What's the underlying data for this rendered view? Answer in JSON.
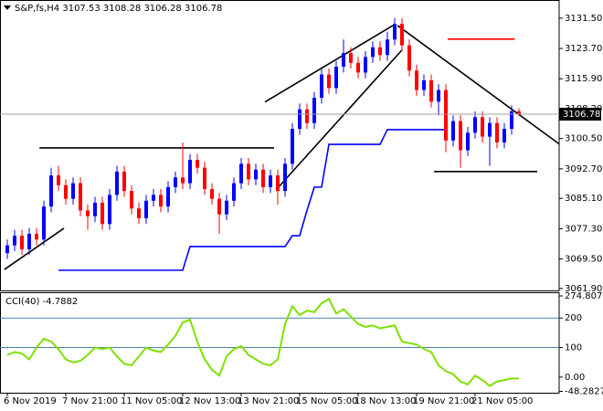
{
  "chart_data": [
    {
      "type": "candlestick",
      "title": "S&P,fs,H4",
      "categories": [
        "6 Nov 2019",
        null,
        null,
        null,
        null,
        null,
        null,
        null,
        "7 Nov 21:00",
        null,
        null,
        null,
        null,
        null,
        null,
        null,
        "11 Nov 05:00",
        null,
        null,
        null,
        null,
        null,
        null,
        null,
        "12 Nov 13:00",
        null,
        null,
        null,
        null,
        null,
        null,
        null,
        "13 Nov 21:00",
        null,
        null,
        null,
        null,
        null,
        null,
        null,
        "15 Nov 05:00",
        null,
        null,
        null,
        null,
        null,
        null,
        null,
        "18 Nov 13:00",
        null,
        null,
        null,
        null,
        null,
        null,
        null,
        "19 Nov 21:00",
        null,
        null,
        null,
        null,
        null,
        null,
        null,
        "21 Nov 05:00",
        null,
        null,
        null,
        null,
        null,
        null
      ],
      "open": [
        3071.0,
        3073.0,
        3075.5,
        3072.0,
        3076.0,
        3074.5,
        3083.0,
        3091.0,
        3088.5,
        3085.0,
        3089.0,
        3082.0,
        3080.5,
        3084.0,
        3078.5,
        3086.0,
        3092.0,
        3087.0,
        3082.5,
        3080.0,
        3084.5,
        3086.0,
        3083.0,
        3088.0,
        3090.5,
        3089.0,
        3095.0,
        3093.0,
        3087.5,
        3085.0,
        3081.0,
        3084.5,
        3089.0,
        3094.0,
        3090.0,
        3092.5,
        3088.0,
        3091.0,
        3087.0,
        3094.0,
        3103.0,
        3108.0,
        3104.5,
        3111.0,
        3117.0,
        3113.5,
        3119.0,
        3122.5,
        3120.0,
        3117.5,
        3121.5,
        3124.0,
        3122.0,
        3126.0,
        3130.0,
        3124.5,
        3118.0,
        3113.0,
        3115.5,
        3110.0,
        3113.0,
        3100.0,
        3105.0,
        3097.5,
        3102.0,
        3106.0,
        3101.0,
        3104.5,
        3099.5,
        3103.0,
        3107.53
      ],
      "high": [
        3074.5,
        3077.0,
        3077.0,
        3077.5,
        3077.5,
        3084.5,
        3093.0,
        3093.5,
        3090.0,
        3090.5,
        3090.5,
        3083.5,
        3085.5,
        3085.5,
        3087.5,
        3093.5,
        3093.5,
        3088.5,
        3084.0,
        3086.0,
        3087.5,
        3087.5,
        3089.5,
        3092.0,
        3099.5,
        3096.5,
        3096.5,
        3094.5,
        3089.0,
        3086.5,
        3086.0,
        3090.5,
        3095.5,
        3095.5,
        3094.0,
        3094.0,
        3092.5,
        3092.5,
        3095.5,
        3104.5,
        3109.5,
        3109.5,
        3112.5,
        3118.5,
        3118.5,
        3120.5,
        3126.0,
        3124.0,
        3121.5,
        3123.0,
        3125.5,
        3125.5,
        3128.0,
        3131.5,
        3131.5,
        3126.0,
        3119.5,
        3117.0,
        3117.0,
        3114.5,
        3114.5,
        3106.5,
        3106.5,
        3103.5,
        3107.5,
        3107.5,
        3106.0,
        3106.0,
        3104.5,
        3109.0,
        3108.28
      ],
      "low": [
        3069.5,
        3071.5,
        3070.5,
        3070.5,
        3073.0,
        3073.0,
        3081.5,
        3087.0,
        3083.5,
        3083.5,
        3080.5,
        3077.0,
        3079.0,
        3077.0,
        3077.0,
        3084.5,
        3085.5,
        3081.0,
        3078.5,
        3078.5,
        3083.0,
        3081.5,
        3081.5,
        3086.5,
        3087.5,
        3087.5,
        3091.5,
        3086.0,
        3083.5,
        3076.0,
        3079.5,
        3083.0,
        3087.5,
        3088.5,
        3088.5,
        3086.5,
        3086.5,
        3083.5,
        3085.5,
        3092.5,
        3101.5,
        3103.0,
        3103.0,
        3109.5,
        3112.0,
        3112.0,
        3117.5,
        3118.5,
        3116.0,
        3116.0,
        3120.0,
        3120.5,
        3120.5,
        3124.5,
        3123.0,
        3116.5,
        3111.5,
        3111.5,
        3108.5,
        3106.5,
        3097.0,
        3098.5,
        3093.0,
        3096.0,
        3100.5,
        3099.5,
        3093.5,
        3098.0,
        3098.0,
        3101.5,
        3106.28
      ],
      "close": [
        3073.0,
        3075.5,
        3072.0,
        3076.0,
        3074.5,
        3083.0,
        3091.0,
        3088.5,
        3085.0,
        3089.0,
        3082.0,
        3080.5,
        3084.0,
        3078.5,
        3086.0,
        3092.0,
        3087.0,
        3082.5,
        3080.0,
        3084.5,
        3086.0,
        3083.0,
        3088.0,
        3090.5,
        3089.0,
        3095.0,
        3093.0,
        3087.5,
        3085.0,
        3081.0,
        3084.5,
        3089.0,
        3094.0,
        3090.0,
        3092.5,
        3088.0,
        3091.0,
        3087.0,
        3094.0,
        3103.0,
        3108.0,
        3104.5,
        3111.0,
        3117.0,
        3113.5,
        3119.0,
        3122.5,
        3120.0,
        3117.5,
        3121.5,
        3124.0,
        3122.0,
        3126.0,
        3130.0,
        3124.5,
        3118.0,
        3113.0,
        3115.5,
        3110.0,
        3113.0,
        3100.0,
        3105.0,
        3097.5,
        3102.0,
        3106.0,
        3101.0,
        3104.5,
        3099.5,
        3103.0,
        3107.53,
        3106.78
      ],
      "up_color": "#0000ff",
      "down_color": "#ff0000",
      "lines": [
        {
          "color": "#0000ff",
          "values": [
            null,
            null,
            null,
            null,
            null,
            null,
            null,
            3066.6,
            3066.6,
            3066.6,
            3066.6,
            3066.6,
            3066.6,
            3066.6,
            3066.6,
            3066.6,
            3066.6,
            3066.6,
            3066.6,
            3066.6,
            3066.6,
            3066.6,
            3066.6,
            3066.6,
            3066.6,
            3072.7,
            3072.7,
            3072.7,
            3072.7,
            3072.7,
            3072.7,
            3072.7,
            3072.7,
            3072.7,
            3072.7,
            3072.7,
            3072.7,
            3072.7,
            3072.7,
            3075.5,
            3075.5,
            3082.0,
            3088.0,
            3088.0,
            3099.0,
            3099.0,
            3099.0,
            3099.0,
            3099.0,
            3099.0,
            3099.0,
            3099.0,
            3102.8,
            3102.8,
            3102.8,
            3102.8,
            3102.8,
            3102.8,
            3102.8,
            3102.8,
            3102.8,
            null,
            null,
            null,
            null,
            null,
            null,
            null,
            null,
            null,
            null
          ]
        }
      ],
      "trendlines": [
        {
          "color": "#000000",
          "x": [
            4.4,
            36.5
          ],
          "y": [
            3098.1,
            3098.1
          ]
        },
        {
          "color": "#000000",
          "x": [
            -0.4,
            7.75
          ],
          "y": [
            3066.8,
            3077.4
          ]
        },
        {
          "color": "#000000",
          "x": [
            37.1,
            54.0
          ],
          "y": [
            3088.0,
            3123.3
          ]
        },
        {
          "color": "#000000",
          "x": [
            35.25,
            52.75
          ],
          "y": [
            3109.9,
            3129.6
          ]
        },
        {
          "color": "#000000",
          "x": [
            53.4,
            75.5
          ],
          "y": [
            3129.6,
            3099.1
          ]
        },
        {
          "color": "#000000",
          "x": [
            58.4,
            72.5
          ],
          "y": [
            3092.0,
            3092.0
          ]
        },
        {
          "color": "#ff0000",
          "x": [
            60.25,
            69.4
          ],
          "y": [
            3126.1,
            3126.1
          ]
        }
      ],
      "ylim": [
        3061.4,
        3135.7
      ],
      "yticks": [
        {
          "value": 3131.5,
          "label": "3131.50"
        },
        {
          "value": 3123.7,
          "label": "3123.70"
        },
        {
          "value": 3115.9,
          "label": "3115.90"
        },
        {
          "value": 3108.2,
          "label": "3108.20"
        },
        {
          "value": 3100.5,
          "label": "3100.50"
        },
        {
          "value": 3092.7,
          "label": "3092.70"
        },
        {
          "value": 3085.1,
          "label": "3085.10"
        },
        {
          "value": 3077.3,
          "label": "3077.30"
        },
        {
          "value": 3069.5,
          "label": "3069.50"
        },
        {
          "value": 3061.9,
          "label": "3061.90"
        }
      ]
    },
    {
      "type": "line",
      "title": "CCI(40)",
      "color": "#7ee000",
      "values": [
        75,
        85,
        80,
        60,
        100,
        130,
        120,
        95,
        60,
        50,
        55,
        75,
        100,
        95,
        100,
        70,
        45,
        40,
        70,
        100,
        90,
        85,
        110,
        140,
        185,
        195,
        120,
        60,
        25,
        5,
        70,
        95,
        105,
        75,
        60,
        45,
        40,
        60,
        180,
        240,
        210,
        225,
        220,
        250,
        265,
        215,
        230,
        205,
        180,
        170,
        175,
        165,
        170,
        175,
        120,
        115,
        110,
        95,
        85,
        40,
        20,
        10,
        -15,
        -25,
        5,
        -10,
        -30,
        -15,
        -10,
        -5,
        -4.7882
      ],
      "levels": [
        200,
        100
      ],
      "level_color": "#4682b4",
      "ylim": [
        -48.2827,
        274.8075
      ],
      "yticks": [
        274.8075,
        200,
        100,
        {
          "value": 0,
          "label": "0.00"
        },
        -48.2827
      ]
    }
  ]
}
